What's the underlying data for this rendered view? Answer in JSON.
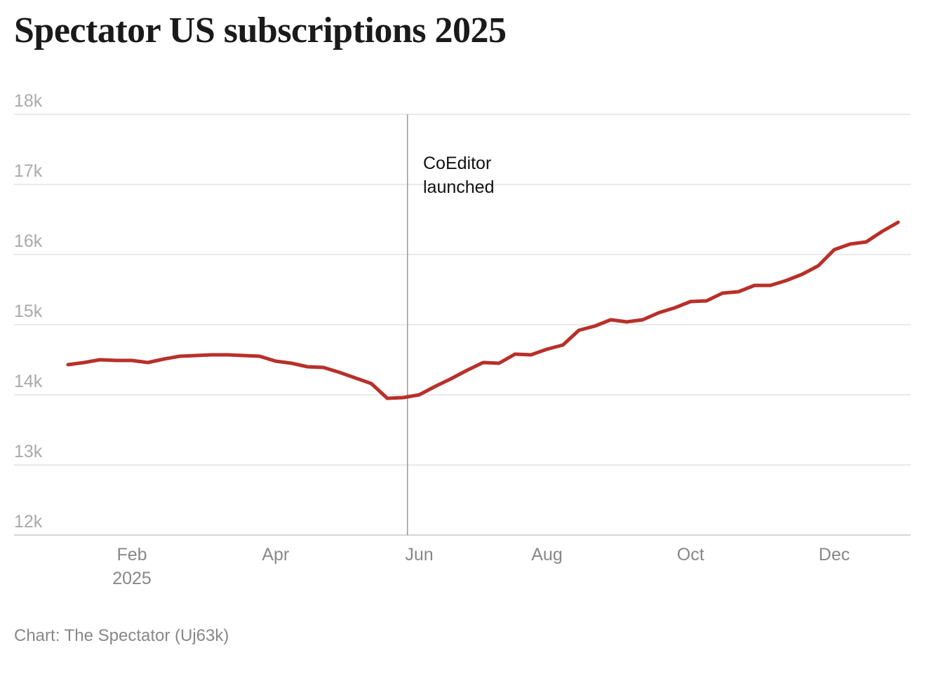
{
  "chart_data": {
    "type": "line",
    "title": "Spectator US subscriptions 2025",
    "source": "Chart: The Spectator (Uj63k)",
    "annotation": "CoEditor launched",
    "categories": [
      null,
      null,
      null,
      null,
      "Feb 2025",
      null,
      null,
      null,
      null,
      null,
      null,
      null,
      null,
      "Apr",
      null,
      null,
      null,
      null,
      null,
      null,
      null,
      null,
      "Jun",
      null,
      null,
      null,
      null,
      null,
      null,
      null,
      "Aug",
      null,
      null,
      null,
      null,
      null,
      null,
      null,
      null,
      "Oct",
      null,
      null,
      null,
      null,
      null,
      null,
      null,
      null,
      "Dec",
      null,
      null,
      null,
      null
    ],
    "series": [
      {
        "name": "Subscriptions",
        "color": "#b8302a",
        "values": [
          14430,
          14460,
          14500,
          14490,
          14490,
          14460,
          14510,
          14550,
          14560,
          14570,
          14570,
          14560,
          14550,
          14480,
          14450,
          14400,
          14390,
          14320,
          14240,
          14160,
          13950,
          13960,
          14000,
          14120,
          14230,
          14350,
          14460,
          14450,
          14580,
          14570,
          14650,
          14710,
          14920,
          14980,
          15070,
          15040,
          15070,
          15170,
          15240,
          15330,
          15340,
          15450,
          15470,
          15560,
          15560,
          15630,
          15720,
          15840,
          16070,
          16150,
          16180,
          16330,
          16460
        ]
      }
    ],
    "ylim": [
      12000,
      18000
    ],
    "yticks": [
      {
        "value": 12000,
        "label": "12k"
      },
      {
        "value": 13000,
        "label": "13k"
      },
      {
        "value": 14000,
        "label": "14k"
      },
      {
        "value": 15000,
        "label": "15k"
      },
      {
        "value": 16000,
        "label": "16k"
      },
      {
        "value": 17000,
        "label": "17k"
      },
      {
        "value": 18000,
        "label": "18k"
      }
    ],
    "grid": true
  }
}
